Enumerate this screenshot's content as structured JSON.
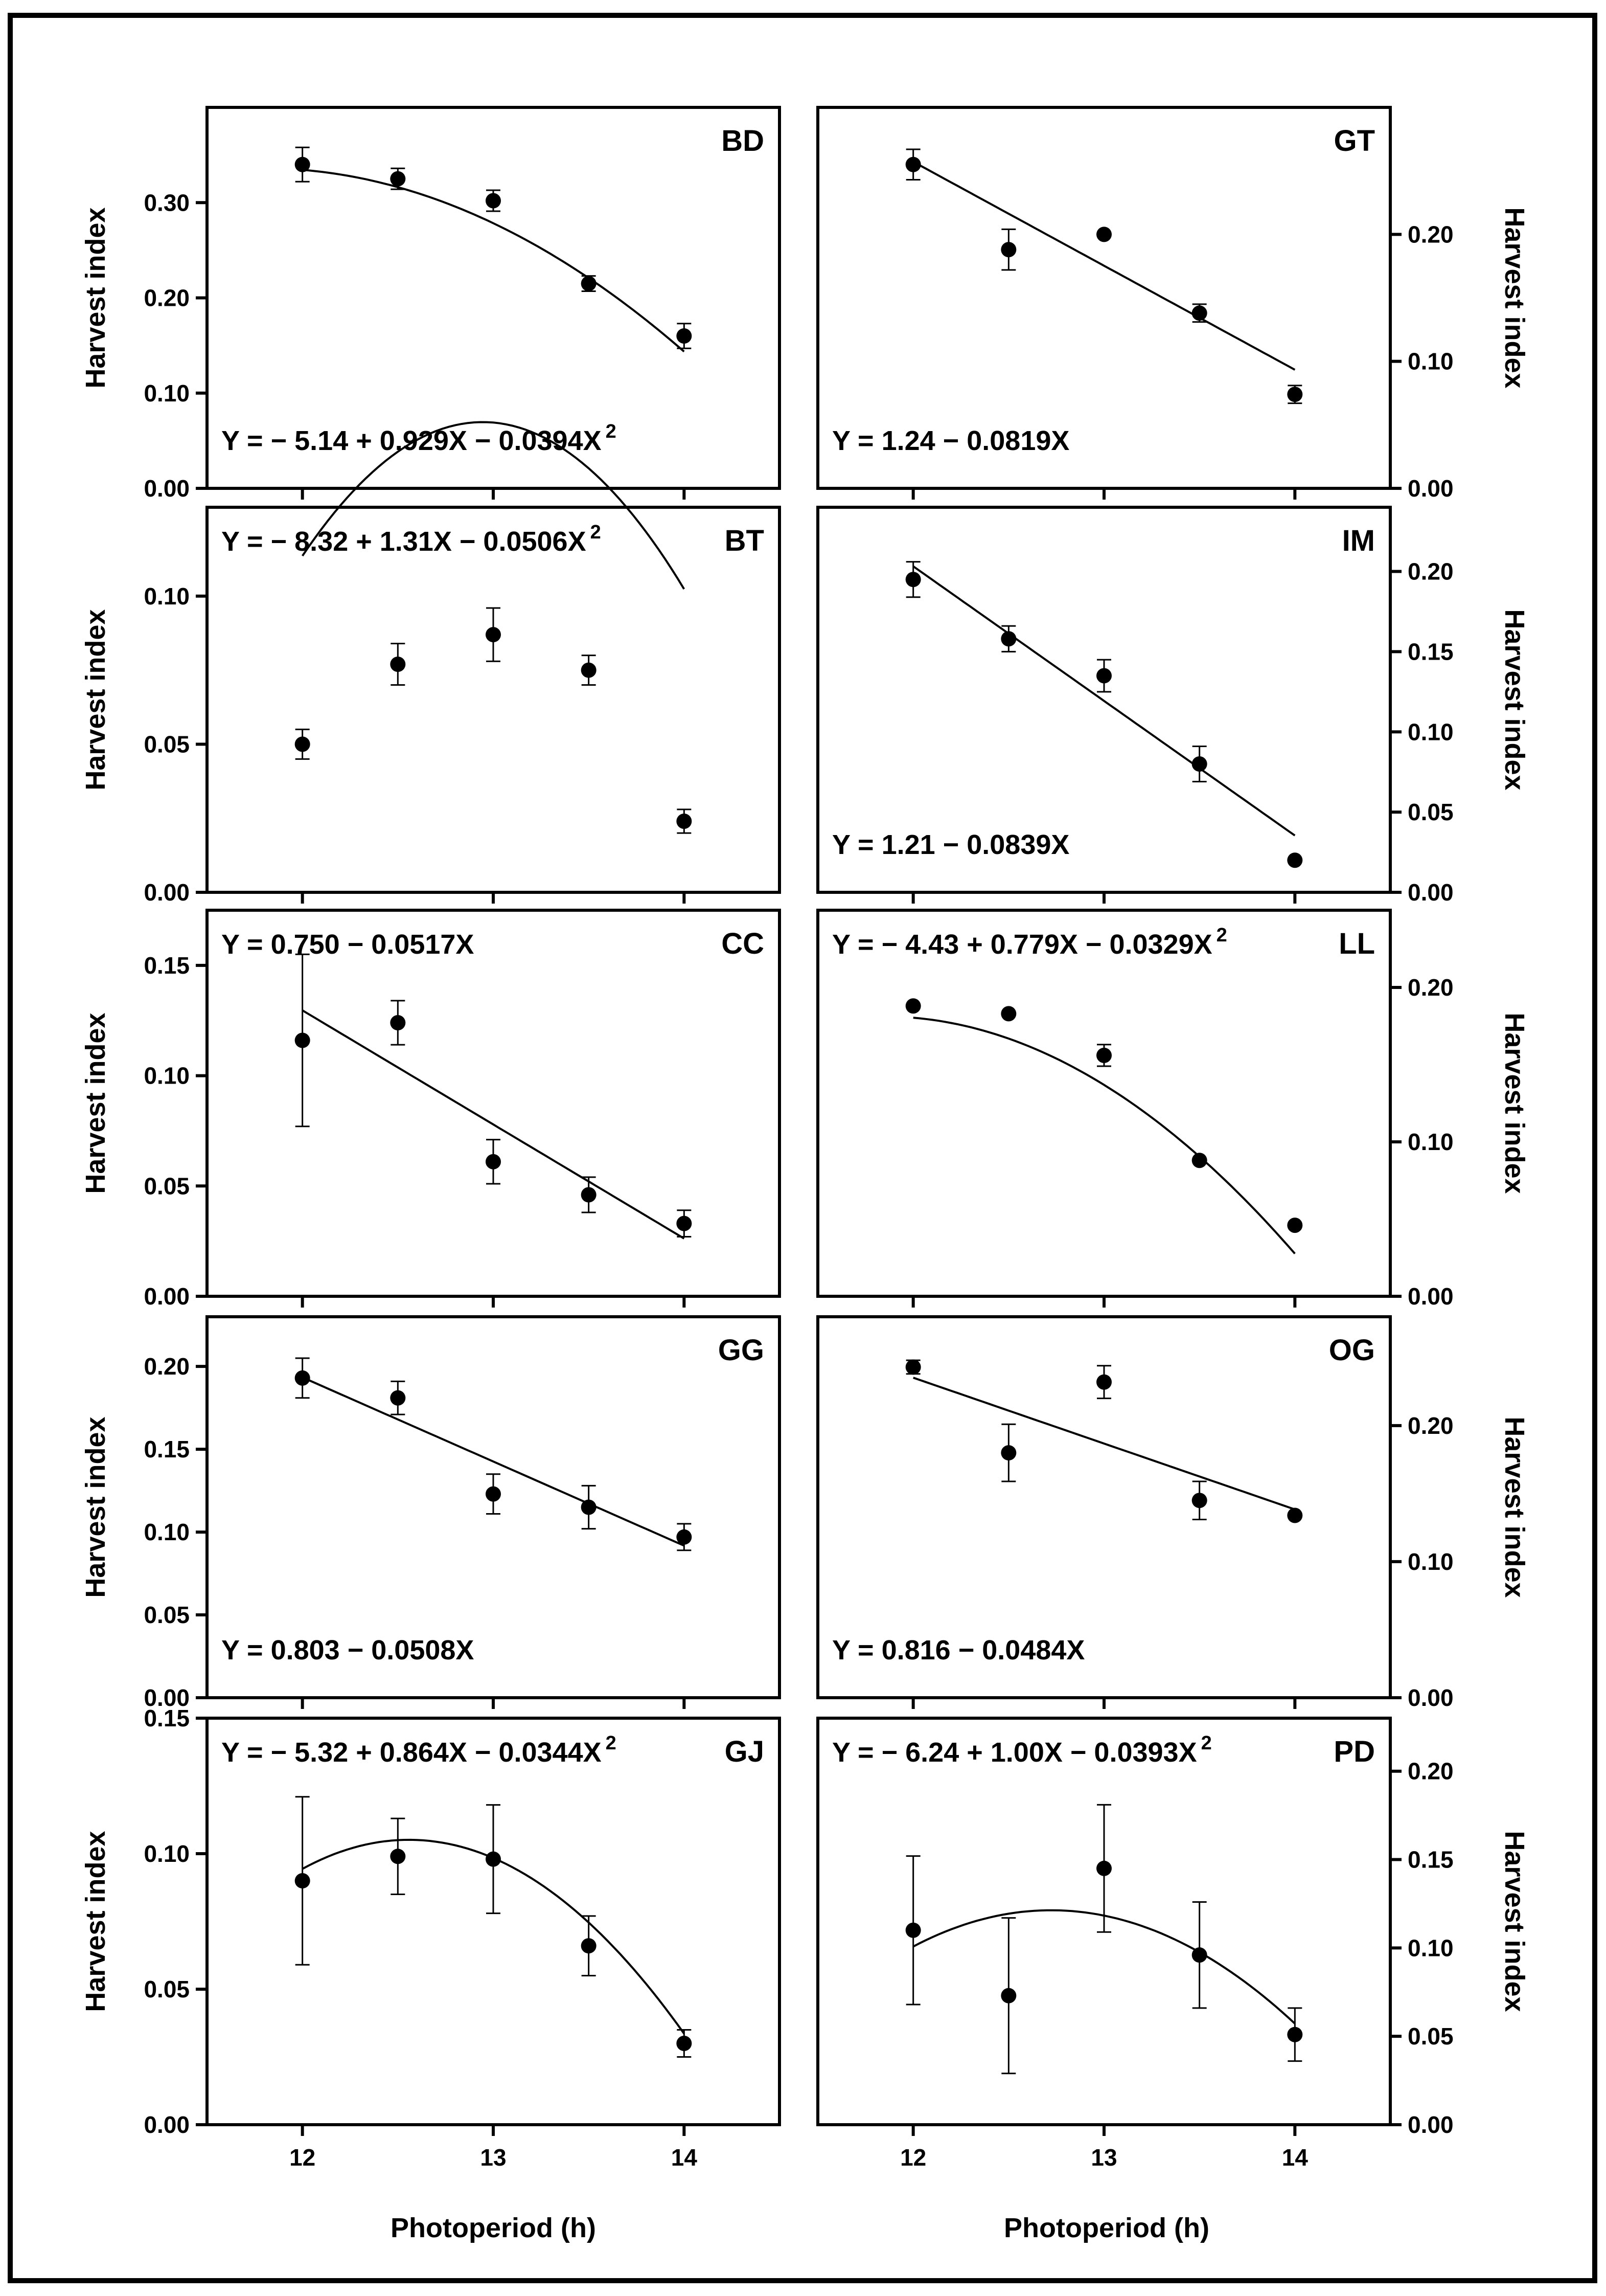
{
  "figure": {
    "x_label": "Photoperiod (h)",
    "x_ticks": [
      12,
      13,
      14
    ],
    "y_label": "Harvest index"
  },
  "chart_data": [
    {
      "id": "BD",
      "type": "scatter",
      "title": "BD",
      "xlabel": "",
      "ylabel": "Harvest index",
      "xlim": [
        11.5,
        14.5
      ],
      "ylim": [
        0,
        0.4
      ],
      "y_ticks": [
        0,
        0.1,
        0.2,
        0.3
      ],
      "y_tick_labels": [
        "0.00",
        "0.10",
        "0.20",
        "0.30"
      ],
      "y_axis": "left",
      "x": [
        12,
        12.5,
        13,
        13.5,
        14
      ],
      "values": [
        0.34,
        0.325,
        0.302,
        0.215,
        0.16
      ],
      "errors": [
        0.018,
        0.011,
        0.011,
        0.008,
        0.013
      ],
      "fit": {
        "kind": "quadratic",
        "coef": [
          -5.14,
          0.929,
          -0.0394
        ]
      },
      "equation": "Y = − 5.14 + 0.929X − 0.0394X",
      "equation_sup": "2",
      "equation_pos": "bottom-left"
    },
    {
      "id": "GT",
      "type": "scatter",
      "title": "GT",
      "xlabel": "",
      "ylabel": "Harvest index",
      "xlim": [
        11.5,
        14.5
      ],
      "ylim": [
        0,
        0.3
      ],
      "y_ticks": [
        0,
        0.1,
        0.2
      ],
      "y_tick_labels": [
        "0.00",
        "0.10",
        "0.20"
      ],
      "y_axis": "right",
      "x": [
        12,
        12.5,
        13,
        13.5,
        14
      ],
      "values": [
        0.255,
        0.188,
        0.2,
        0.138,
        0.074
      ],
      "errors": [
        0.012,
        0.016,
        0,
        0.007,
        0.007
      ],
      "fit": {
        "kind": "linear",
        "coef": [
          1.24,
          -0.0819
        ]
      },
      "equation": "Y = 1.24 − 0.0819X",
      "equation_sup": "",
      "equation_pos": "bottom-left"
    },
    {
      "id": "BT",
      "type": "scatter",
      "title": "BT",
      "xlabel": "",
      "ylabel": "Harvest index",
      "xlim": [
        11.5,
        14.5
      ],
      "ylim": [
        0,
        0.13
      ],
      "y_ticks": [
        0,
        0.05,
        0.1
      ],
      "y_tick_labels": [
        "0.00",
        "0.05",
        "0.10"
      ],
      "y_axis": "left",
      "x": [
        12,
        12.5,
        13,
        13.5,
        14
      ],
      "values": [
        0.05,
        0.077,
        0.087,
        0.075,
        0.024
      ],
      "errors": [
        0.005,
        0.007,
        0.009,
        0.005,
        0.004
      ],
      "fit": {
        "kind": "quadratic",
        "coef": [
          -8.32,
          1.31,
          -0.0506
        ]
      },
      "equation": "Y = − 8.32 + 1.31X − 0.0506X",
      "equation_sup": "2",
      "equation_pos": "top-left"
    },
    {
      "id": "IM",
      "type": "scatter",
      "title": "IM",
      "xlabel": "",
      "ylabel": "Harvest index",
      "xlim": [
        11.5,
        14.5
      ],
      "ylim": [
        0,
        0.24
      ],
      "y_ticks": [
        0,
        0.05,
        0.1,
        0.15,
        0.2
      ],
      "y_tick_labels": [
        "0.00",
        "0.05",
        "0.10",
        "0.15",
        "0.20"
      ],
      "y_axis": "right",
      "x": [
        12,
        12.5,
        13,
        13.5,
        14
      ],
      "values": [
        0.195,
        0.158,
        0.135,
        0.08,
        0.02
      ],
      "errors": [
        0.011,
        0.008,
        0.01,
        0.011,
        0
      ],
      "fit": {
        "kind": "linear",
        "coef": [
          1.21,
          -0.0839
        ]
      },
      "equation": "Y = 1.21 − 0.0839X",
      "equation_sup": "",
      "equation_pos": "bottom-left"
    },
    {
      "id": "CC",
      "type": "scatter",
      "title": "CC",
      "xlabel": "",
      "ylabel": "Harvest index",
      "xlim": [
        11.5,
        14.5
      ],
      "ylim": [
        0,
        0.175
      ],
      "y_ticks": [
        0,
        0.05,
        0.1,
        0.15
      ],
      "y_tick_labels": [
        "0.00",
        "0.05",
        "0.10",
        "0.15"
      ],
      "y_axis": "left",
      "x": [
        12,
        12.5,
        13,
        13.5,
        14
      ],
      "values": [
        0.116,
        0.124,
        0.061,
        0.046,
        0.033
      ],
      "errors": [
        0.039,
        0.01,
        0.01,
        0.008,
        0.006
      ],
      "fit": {
        "kind": "linear",
        "coef": [
          0.75,
          -0.0517
        ]
      },
      "equation": "Y = 0.750 − 0.0517X",
      "equation_sup": "",
      "equation_pos": "top-left"
    },
    {
      "id": "LL",
      "type": "scatter",
      "title": "LL",
      "xlabel": "",
      "ylabel": "Harvest index",
      "xlim": [
        11.5,
        14.5
      ],
      "ylim": [
        0,
        0.25
      ],
      "y_ticks": [
        0,
        0.1,
        0.2
      ],
      "y_tick_labels": [
        "0.00",
        "0.10",
        "0.20"
      ],
      "y_axis": "right",
      "x": [
        12,
        12.5,
        13,
        13.5,
        14
      ],
      "values": [
        0.188,
        0.183,
        0.156,
        0.088,
        0.046
      ],
      "errors": [
        0,
        0,
        0.007,
        0,
        0
      ],
      "fit": {
        "kind": "quadratic",
        "coef": [
          -4.43,
          0.779,
          -0.0329
        ]
      },
      "equation": "Y = − 4.43 + 0.779X − 0.0329X",
      "equation_sup": "2",
      "equation_pos": "top-left"
    },
    {
      "id": "GG",
      "type": "scatter",
      "title": "GG",
      "xlabel": "",
      "ylabel": "Harvest index",
      "xlim": [
        11.5,
        14.5
      ],
      "ylim": [
        0,
        0.23
      ],
      "y_ticks": [
        0,
        0.05,
        0.1,
        0.15,
        0.2
      ],
      "y_tick_labels": [
        "0.00",
        "0.05",
        "0.10",
        "0.15",
        "0.20"
      ],
      "y_axis": "left",
      "x": [
        12,
        12.5,
        13,
        13.5,
        14
      ],
      "values": [
        0.193,
        0.181,
        0.123,
        0.115,
        0.097
      ],
      "errors": [
        0.012,
        0.01,
        0.012,
        0.013,
        0.008
      ],
      "fit": {
        "kind": "linear",
        "coef": [
          0.803,
          -0.0508
        ]
      },
      "equation": "Y = 0.803 − 0.0508X",
      "equation_sup": "",
      "equation_pos": "bottom-left"
    },
    {
      "id": "OG",
      "type": "scatter",
      "title": "OG",
      "xlabel": "",
      "ylabel": "Harvest index",
      "xlim": [
        11.5,
        14.5
      ],
      "ylim": [
        0,
        0.28
      ],
      "y_ticks": [
        0,
        0.1,
        0.2
      ],
      "y_tick_labels": [
        "0.00",
        "0.10",
        "0.20"
      ],
      "y_axis": "right",
      "x": [
        12,
        12.5,
        13,
        13.5,
        14
      ],
      "values": [
        0.243,
        0.18,
        0.232,
        0.145,
        0.134
      ],
      "errors": [
        0.005,
        0.021,
        0.012,
        0.014,
        0
      ],
      "fit": {
        "kind": "linear",
        "coef": [
          0.816,
          -0.0484
        ]
      },
      "equation": "Y = 0.816 − 0.0484X",
      "equation_sup": "",
      "equation_pos": "bottom-left"
    },
    {
      "id": "GJ",
      "type": "scatter",
      "title": "GJ",
      "xlabel": "Photoperiod (h)",
      "ylabel": "Harvest index",
      "xlim": [
        11.5,
        14.5
      ],
      "ylim": [
        0,
        0.15
      ],
      "y_ticks": [
        0,
        0.05,
        0.1,
        0.15
      ],
      "y_tick_labels": [
        "0.00",
        "0.05",
        "0.10",
        "0.15"
      ],
      "y_axis": "left",
      "x": [
        12,
        12.5,
        13,
        13.5,
        14
      ],
      "values": [
        0.09,
        0.099,
        0.098,
        0.066,
        0.03
      ],
      "errors": [
        0.031,
        0.014,
        0.02,
        0.011,
        0.005
      ],
      "fit": {
        "kind": "quadratic",
        "coef": [
          -5.32,
          0.864,
          -0.0344
        ]
      },
      "equation": "Y = − 5.32 + 0.864X − 0.0344X",
      "equation_sup": "2",
      "equation_pos": "top-left"
    },
    {
      "id": "PD",
      "type": "scatter",
      "title": "PD",
      "xlabel": "Photoperiod (h)",
      "ylabel": "Harvest index",
      "xlim": [
        11.5,
        14.5
      ],
      "ylim": [
        0,
        0.23
      ],
      "y_ticks": [
        0,
        0.05,
        0.1,
        0.15,
        0.2
      ],
      "y_tick_labels": [
        "0.00",
        "0.05",
        "0.10",
        "0.15",
        "0.20"
      ],
      "y_axis": "right",
      "x": [
        12,
        12.5,
        13,
        13.5,
        14
      ],
      "values": [
        0.11,
        0.073,
        0.145,
        0.096,
        0.051
      ],
      "errors": [
        0.042,
        0.044,
        0.036,
        0.03,
        0.015
      ],
      "fit": {
        "kind": "quadratic",
        "coef": [
          -6.24,
          1.0,
          -0.0393
        ]
      },
      "equation": "Y = − 6.24 + 1.00X − 0.0393X",
      "equation_sup": "2",
      "equation_pos": "top-left"
    }
  ]
}
